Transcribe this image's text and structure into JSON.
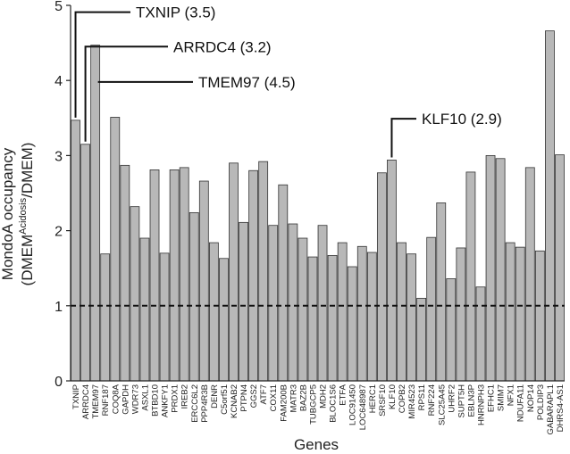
{
  "chart_data": {
    "type": "bar",
    "xlabel": "Genes",
    "ylabel": {
      "line1": "MondoA occupancy",
      "line2_prefix": "(DMEM",
      "line2_superscript": "Acidosis",
      "line2_suffix": "/DMEM)"
    },
    "ylim": [
      0,
      5
    ],
    "yticks": [
      0,
      1,
      2,
      3,
      4,
      5
    ],
    "threshold_line": 1,
    "bar_color": "#b8b8b8",
    "categories": [
      "TXNIP",
      "ARRDC4",
      "TMEM97",
      "RNF187",
      "COQ8A",
      "GAPDH",
      "WDR73",
      "ASXL1",
      "BTBD10",
      "ANKFY1",
      "PRDX1",
      "IREB2",
      "ERCC6L2",
      "PPP4R3B",
      "DENR",
      "C5orf51",
      "KCNAB2",
      "PTPN4",
      "GGS2",
      "ATF7",
      "COX11",
      "FAM200B",
      "MATR3",
      "BAZ2B",
      "TUBGCP5",
      "MDH2",
      "BLOC1S6",
      "ETFA",
      "LOC91450",
      "LOC648987",
      "HERC1",
      "SRSF10",
      "KLF10",
      "COPB2",
      "MIR4523",
      "RPS11",
      "RNF224",
      "SLC25A45",
      "UHRF2",
      "SUPT5H",
      "EBLN3P",
      "HNRNPH3",
      "EFHC1",
      "SMIM7",
      "NFX1",
      "NDUFA11",
      "NOP14",
      "POLDIP3",
      "GABARAPL1",
      "DHRS4-AS1"
    ],
    "values": [
      3.47,
      3.15,
      4.47,
      1.69,
      3.51,
      2.87,
      2.32,
      1.9,
      2.81,
      1.7,
      2.81,
      2.84,
      2.24,
      2.66,
      1.84,
      1.63,
      2.9,
      2.11,
      2.8,
      2.92,
      2.07,
      2.61,
      2.09,
      1.9,
      1.65,
      2.07,
      1.67,
      1.84,
      1.52,
      1.79,
      1.71,
      2.77,
      2.94,
      1.84,
      1.69,
      1.1,
      1.91,
      2.37,
      1.36,
      1.77,
      2.78,
      1.25,
      3.0,
      2.96,
      1.84,
      1.78,
      2.84,
      1.73,
      4.66,
      3.01
    ],
    "annotations": [
      {
        "gene": "TXNIP",
        "label": "TXNIP (3.5)"
      },
      {
        "gene": "ARRDC4",
        "label": "ARRDC4 (3.2)"
      },
      {
        "gene": "TMEM97",
        "label": "TMEM97 (4.5)"
      },
      {
        "gene": "KLF10",
        "label": "KLF10 (2.9)"
      }
    ]
  }
}
